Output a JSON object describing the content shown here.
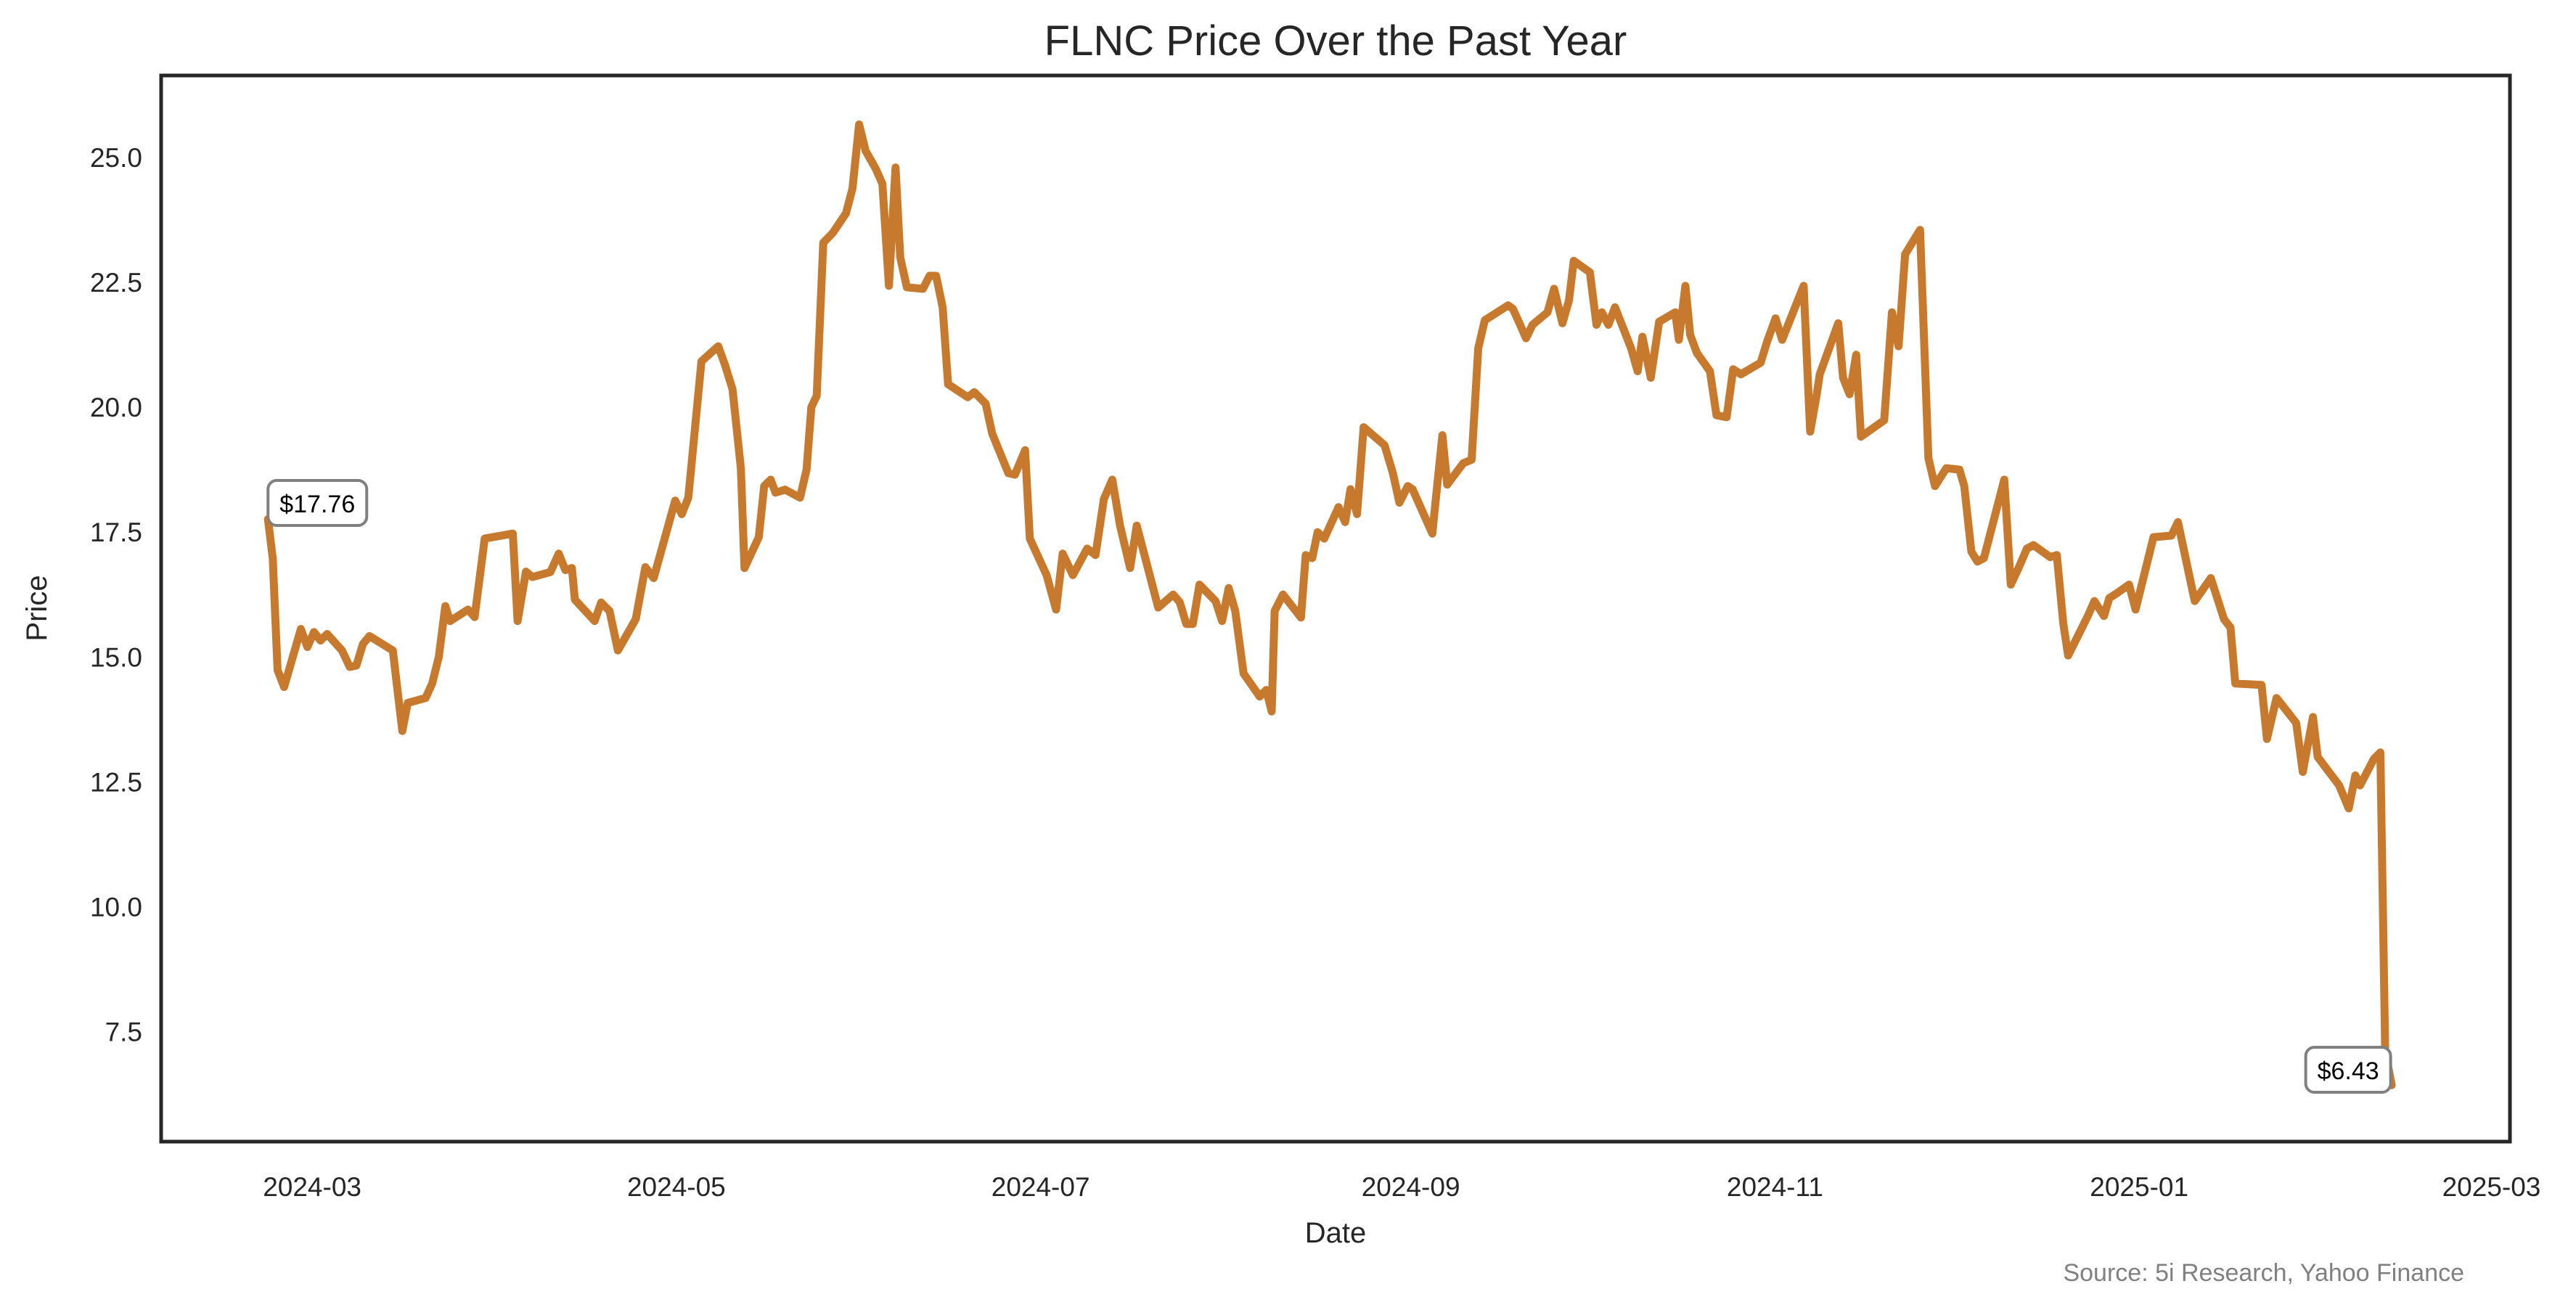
{
  "chart_data": {
    "type": "line",
    "title": "FLNC Price Over the Past Year",
    "xlabel": "Date",
    "ylabel": "Price",
    "source": "Source: 5i Research, Yahoo Finance",
    "x_unit": "days since 2024-03-01",
    "xlim": [
      -25.3,
      368.1
    ],
    "ylim": [
      5.3,
      26.64
    ],
    "grid": false,
    "line_color": "#C77A2E",
    "x_ticks": [
      {
        "label": "2024-03",
        "value": 0
      },
      {
        "label": "2024-05",
        "value": 61
      },
      {
        "label": "2024-07",
        "value": 122
      },
      {
        "label": "2024-09",
        "value": 184
      },
      {
        "label": "2024-11",
        "value": 245
      },
      {
        "label": "2025-01",
        "value": 306
      },
      {
        "label": "2025-03",
        "value": 365
      }
    ],
    "y_ticks": [
      {
        "label": "7.5",
        "value": 7.5
      },
      {
        "label": "10.0",
        "value": 10.0
      },
      {
        "label": "12.5",
        "value": 12.5
      },
      {
        "label": "15.0",
        "value": 15.0
      },
      {
        "label": "17.5",
        "value": 17.5
      },
      {
        "label": "20.0",
        "value": 20.0
      },
      {
        "label": "22.5",
        "value": 22.5
      },
      {
        "label": "25.0",
        "value": 25.0
      }
    ],
    "annotations": [
      {
        "text": "$17.76",
        "x": -7.4,
        "y": 17.76,
        "position": "above"
      },
      {
        "text": "$6.43",
        "x": 348.3,
        "y": 6.43,
        "position": "above-left"
      }
    ],
    "points": [
      [
        -7.4,
        17.76
      ],
      [
        -6.6,
        16.97
      ],
      [
        -5.8,
        14.74
      ],
      [
        -4.7,
        14.4
      ],
      [
        -1.9,
        15.56
      ],
      [
        -0.8,
        15.2
      ],
      [
        0.3,
        15.5
      ],
      [
        1.4,
        15.33
      ],
      [
        2.5,
        15.46
      ],
      [
        5.0,
        15.13
      ],
      [
        6.3,
        14.8
      ],
      [
        7.4,
        14.83
      ],
      [
        8.5,
        15.26
      ],
      [
        9.6,
        15.42
      ],
      [
        13.5,
        15.13
      ],
      [
        15.1,
        13.52
      ],
      [
        16.0,
        14.08
      ],
      [
        19.0,
        14.18
      ],
      [
        20.1,
        14.47
      ],
      [
        21.2,
        15.0
      ],
      [
        22.3,
        16.02
      ],
      [
        23.1,
        15.72
      ],
      [
        26.1,
        15.95
      ],
      [
        27.2,
        15.8
      ],
      [
        28.1,
        16.64
      ],
      [
        28.9,
        17.37
      ],
      [
        33.6,
        17.47
      ],
      [
        34.4,
        15.72
      ],
      [
        35.8,
        16.71
      ],
      [
        36.9,
        16.6
      ],
      [
        39.9,
        16.7
      ],
      [
        41.3,
        17.07
      ],
      [
        42.4,
        16.74
      ],
      [
        43.5,
        16.78
      ],
      [
        44.0,
        16.15
      ],
      [
        47.3,
        15.72
      ],
      [
        48.4,
        16.09
      ],
      [
        49.8,
        15.92
      ],
      [
        51.2,
        15.13
      ],
      [
        54.2,
        15.76
      ],
      [
        55.8,
        16.8
      ],
      [
        57.2,
        16.58
      ],
      [
        60.8,
        18.13
      ],
      [
        61.9,
        17.86
      ],
      [
        63.0,
        18.19
      ],
      [
        65.2,
        20.92
      ],
      [
        68.0,
        21.22
      ],
      [
        69.1,
        20.86
      ],
      [
        70.4,
        20.36
      ],
      [
        71.8,
        18.78
      ],
      [
        72.4,
        16.78
      ],
      [
        74.8,
        17.4
      ],
      [
        75.7,
        18.42
      ],
      [
        76.8,
        18.55
      ],
      [
        77.6,
        18.29
      ],
      [
        79.2,
        18.35
      ],
      [
        81.7,
        18.19
      ],
      [
        82.8,
        18.75
      ],
      [
        83.6,
        20.0
      ],
      [
        84.5,
        20.23
      ],
      [
        85.6,
        23.29
      ],
      [
        87.2,
        23.49
      ],
      [
        89.4,
        23.88
      ],
      [
        90.5,
        24.38
      ],
      [
        91.6,
        25.66
      ],
      [
        92.7,
        25.13
      ],
      [
        94.4,
        24.77
      ],
      [
        95.5,
        24.47
      ],
      [
        96.6,
        22.43
      ],
      [
        97.7,
        24.8
      ],
      [
        98.5,
        23.0
      ],
      [
        99.6,
        22.4
      ],
      [
        102.3,
        22.37
      ],
      [
        103.4,
        22.63
      ],
      [
        104.5,
        22.63
      ],
      [
        105.6,
        22.0
      ],
      [
        106.5,
        20.46
      ],
      [
        109.8,
        20.2
      ],
      [
        110.9,
        20.3
      ],
      [
        112.8,
        20.07
      ],
      [
        113.9,
        19.47
      ],
      [
        116.6,
        18.68
      ],
      [
        117.7,
        18.65
      ],
      [
        119.4,
        19.14
      ],
      [
        120.2,
        17.37
      ],
      [
        123.0,
        16.64
      ],
      [
        124.6,
        15.95
      ],
      [
        125.7,
        17.07
      ],
      [
        127.4,
        16.64
      ],
      [
        129.8,
        17.17
      ],
      [
        131.2,
        17.04
      ],
      [
        132.6,
        18.16
      ],
      [
        134.0,
        18.55
      ],
      [
        135.3,
        17.63
      ],
      [
        137.0,
        16.78
      ],
      [
        138.1,
        17.63
      ],
      [
        141.7,
        15.99
      ],
      [
        144.2,
        16.25
      ],
      [
        145.3,
        16.1
      ],
      [
        146.4,
        15.66
      ],
      [
        147.5,
        15.66
      ],
      [
        148.6,
        16.45
      ],
      [
        151.3,
        16.12
      ],
      [
        152.4,
        15.72
      ],
      [
        153.5,
        16.38
      ],
      [
        154.6,
        15.92
      ],
      [
        156.0,
        14.67
      ],
      [
        158.7,
        14.21
      ],
      [
        159.8,
        14.34
      ],
      [
        160.7,
        13.91
      ],
      [
        161.2,
        15.92
      ],
      [
        162.6,
        16.25
      ],
      [
        165.6,
        15.79
      ],
      [
        166.4,
        17.04
      ],
      [
        167.5,
        16.98
      ],
      [
        168.4,
        17.5
      ],
      [
        169.5,
        17.37
      ],
      [
        171.9,
        18.0
      ],
      [
        173.0,
        17.7
      ],
      [
        173.9,
        18.36
      ],
      [
        175.0,
        17.86
      ],
      [
        176.1,
        19.6
      ],
      [
        179.6,
        19.24
      ],
      [
        181.0,
        18.68
      ],
      [
        182.1,
        18.09
      ],
      [
        183.5,
        18.42
      ],
      [
        184.3,
        18.36
      ],
      [
        187.6,
        17.47
      ],
      [
        189.3,
        19.44
      ],
      [
        190.1,
        18.45
      ],
      [
        192.8,
        18.88
      ],
      [
        194.2,
        18.95
      ],
      [
        195.3,
        21.18
      ],
      [
        196.4,
        21.74
      ],
      [
        200.3,
        22.04
      ],
      [
        201.1,
        21.97
      ],
      [
        202.2,
        21.68
      ],
      [
        203.3,
        21.38
      ],
      [
        204.4,
        21.65
      ],
      [
        206.9,
        21.9
      ],
      [
        208.0,
        22.37
      ],
      [
        209.4,
        21.68
      ],
      [
        210.5,
        22.14
      ],
      [
        211.3,
        22.93
      ],
      [
        214.0,
        22.7
      ],
      [
        215.1,
        21.65
      ],
      [
        216.0,
        21.9
      ],
      [
        217.1,
        21.65
      ],
      [
        218.2,
        22.0
      ],
      [
        220.9,
        21.18
      ],
      [
        222.0,
        20.72
      ],
      [
        222.8,
        21.41
      ],
      [
        224.2,
        20.59
      ],
      [
        225.6,
        21.71
      ],
      [
        228.3,
        21.9
      ],
      [
        228.9,
        21.35
      ],
      [
        230.0,
        22.43
      ],
      [
        230.8,
        21.45
      ],
      [
        231.9,
        21.09
      ],
      [
        234.1,
        20.72
      ],
      [
        235.2,
        19.84
      ],
      [
        236.9,
        19.8
      ],
      [
        238.0,
        20.76
      ],
      [
        239.3,
        20.66
      ],
      [
        242.6,
        20.89
      ],
      [
        243.7,
        21.32
      ],
      [
        245.1,
        21.78
      ],
      [
        246.2,
        21.35
      ],
      [
        249.8,
        22.43
      ],
      [
        250.9,
        19.51
      ],
      [
        252.0,
        20.26
      ],
      [
        252.5,
        20.66
      ],
      [
        255.6,
        21.68
      ],
      [
        256.4,
        20.59
      ],
      [
        257.5,
        20.26
      ],
      [
        258.6,
        21.05
      ],
      [
        259.4,
        19.41
      ],
      [
        263.3,
        19.74
      ],
      [
        264.6,
        21.9
      ],
      [
        265.7,
        21.22
      ],
      [
        266.8,
        23.06
      ],
      [
        269.3,
        23.55
      ],
      [
        270.7,
        18.98
      ],
      [
        271.8,
        18.42
      ],
      [
        273.7,
        18.78
      ],
      [
        275.9,
        18.75
      ],
      [
        276.7,
        18.42
      ],
      [
        277.9,
        17.11
      ],
      [
        278.9,
        16.91
      ],
      [
        280.0,
        16.98
      ],
      [
        283.4,
        18.55
      ],
      [
        284.5,
        16.45
      ],
      [
        285.8,
        16.78
      ],
      [
        287.2,
        17.17
      ],
      [
        288.3,
        17.24
      ],
      [
        291.1,
        17.0
      ],
      [
        292.2,
        17.04
      ],
      [
        293.3,
        15.66
      ],
      [
        294.1,
        15.03
      ],
      [
        297.4,
        15.82
      ],
      [
        298.5,
        16.12
      ],
      [
        300.1,
        15.82
      ],
      [
        301.0,
        16.18
      ],
      [
        302.3,
        16.28
      ],
      [
        304.3,
        16.45
      ],
      [
        305.4,
        15.95
      ],
      [
        308.4,
        17.4
      ],
      [
        311.4,
        17.43
      ],
      [
        312.5,
        17.7
      ],
      [
        315.3,
        16.12
      ],
      [
        318.0,
        16.58
      ],
      [
        320.2,
        15.76
      ],
      [
        321.3,
        15.59
      ],
      [
        322.1,
        14.47
      ],
      [
        326.5,
        14.44
      ],
      [
        327.4,
        13.36
      ],
      [
        329.0,
        14.18
      ],
      [
        332.3,
        13.68
      ],
      [
        333.4,
        12.7
      ],
      [
        335.1,
        13.8
      ],
      [
        335.9,
        13.0
      ],
      [
        339.5,
        12.43
      ],
      [
        341.1,
        11.97
      ],
      [
        342.2,
        12.63
      ],
      [
        343.0,
        12.43
      ],
      [
        345.3,
        12.96
      ],
      [
        346.4,
        13.09
      ],
      [
        347.2,
        7.11
      ],
      [
        348.3,
        6.43
      ]
    ]
  }
}
